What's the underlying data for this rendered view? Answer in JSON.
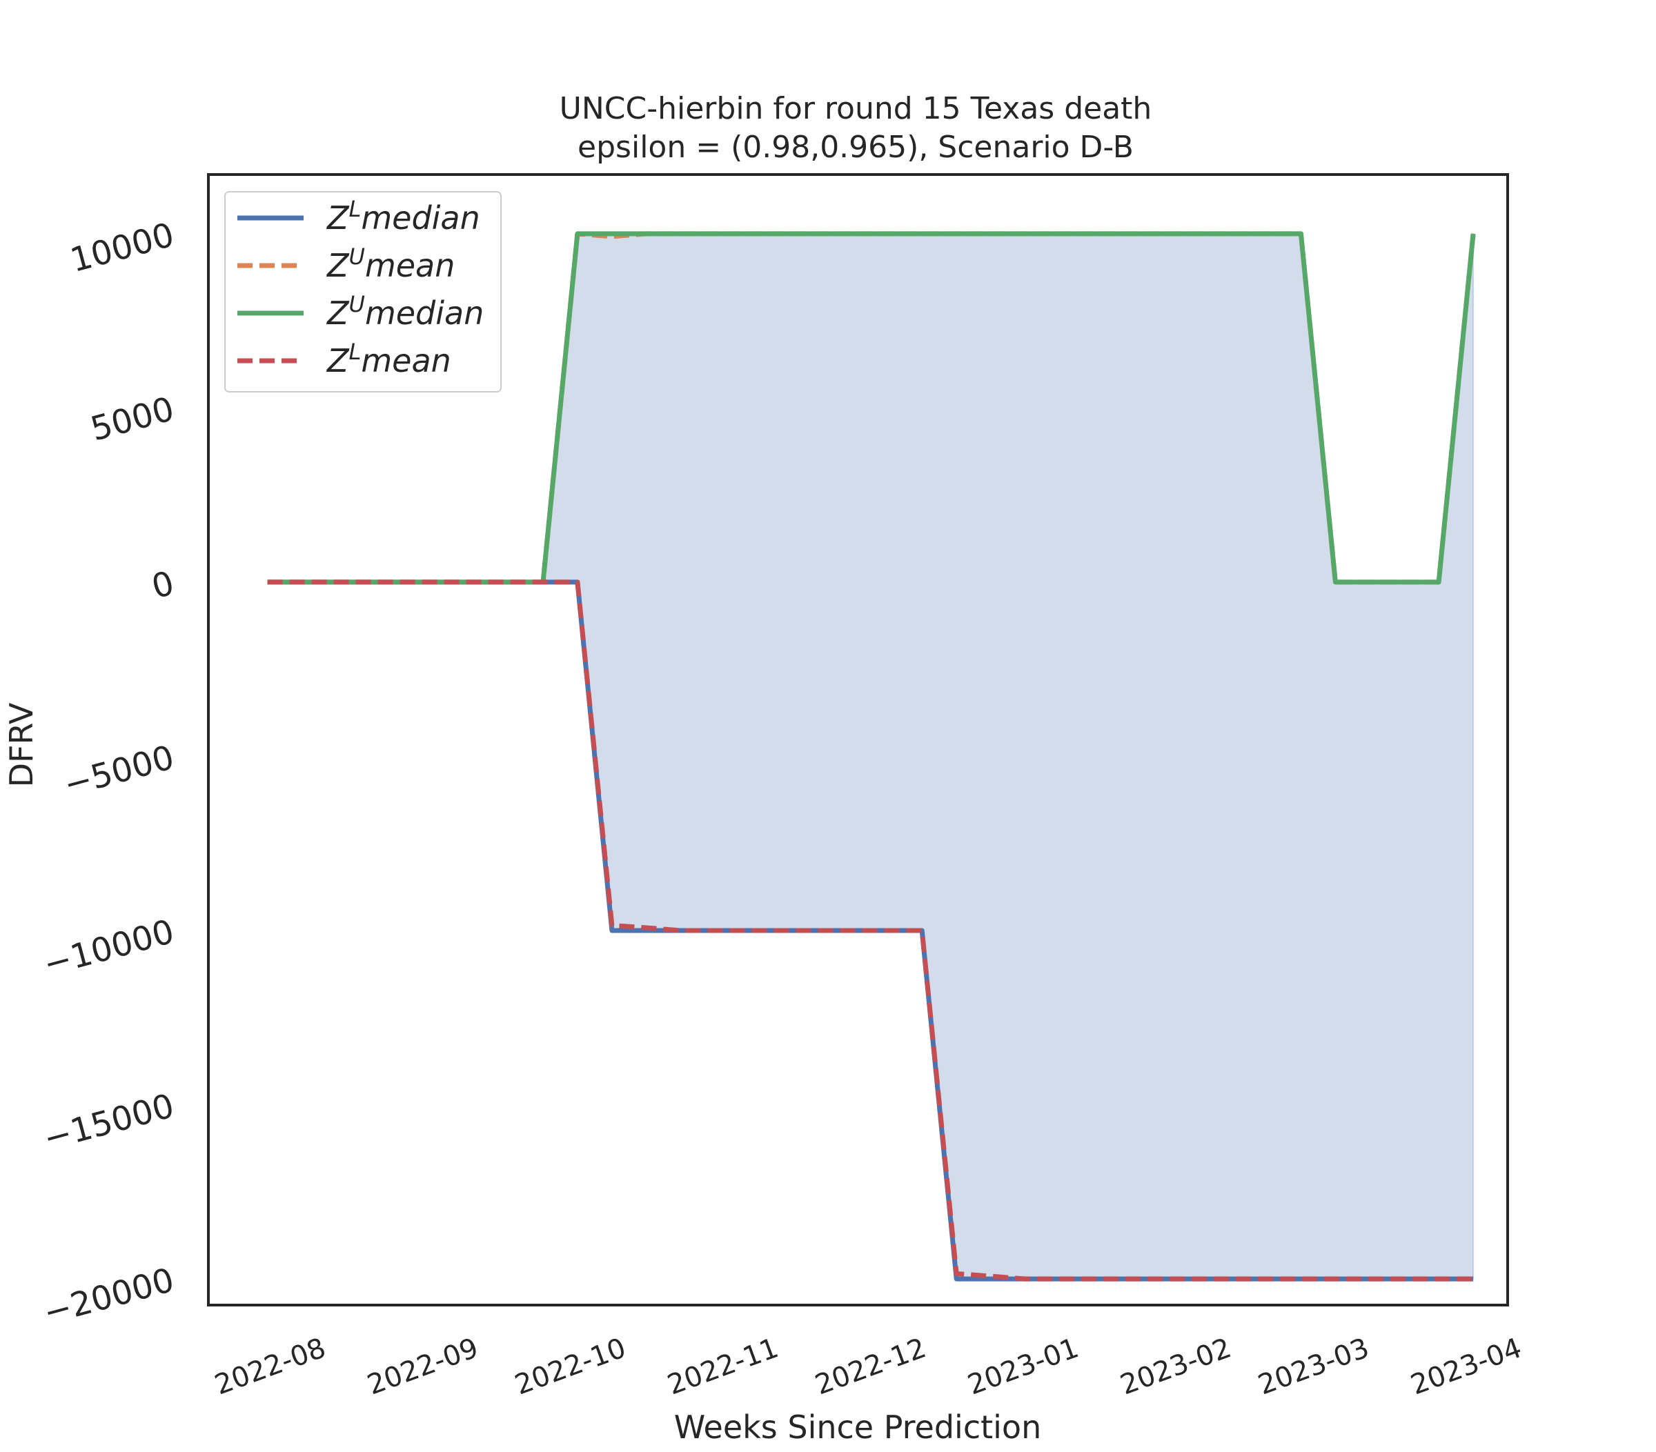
{
  "chart_data": {
    "type": "line",
    "title_line1": "UNCC-hierbin for round 15 Texas  death",
    "title_line2": "epsilon = (0.98,0.965), Scenario D-B",
    "xlabel": "Weeks Since Prediction",
    "ylabel": "DFRV",
    "ylim": [
      -20750,
      11700
    ],
    "yticks": [
      10000,
      5000,
      0,
      -5000,
      -10000,
      -15000,
      -20000
    ],
    "ytick_labels": [
      "10000",
      "5000",
      "0",
      "−5000",
      "−10000",
      "−15000",
      "−20000"
    ],
    "xlim": [
      "2022-07-12",
      "2023-04-02"
    ],
    "xticks": [
      "2022-08-01",
      "2022-09-01",
      "2022-10-01",
      "2022-11-01",
      "2022-12-01",
      "2023-01-01",
      "2023-02-01",
      "2023-03-01",
      "2023-04-01"
    ],
    "xtick_labels": [
      "2022-08",
      "2022-09",
      "2022-10",
      "2022-11",
      "2022-12",
      "2023-01",
      "2023-02",
      "2023-03",
      "2023-04"
    ],
    "grid": false,
    "legend_position": "top-left",
    "fill_color": "#4c72b0",
    "x": [
      "2022-07-24",
      "2022-07-31",
      "2022-08-07",
      "2022-08-14",
      "2022-08-21",
      "2022-08-28",
      "2022-09-04",
      "2022-09-11",
      "2022-09-18",
      "2022-09-25",
      "2022-10-02",
      "2022-10-09",
      "2022-10-16",
      "2022-10-23",
      "2022-10-30",
      "2022-11-06",
      "2022-11-13",
      "2022-11-20",
      "2022-11-27",
      "2022-12-04",
      "2022-12-11",
      "2022-12-18",
      "2022-12-25",
      "2023-01-01",
      "2023-01-08",
      "2023-01-15",
      "2023-01-22",
      "2023-01-29",
      "2023-02-05",
      "2023-02-12",
      "2023-02-19",
      "2023-02-26",
      "2023-03-05",
      "2023-03-12",
      "2023-03-19",
      "2023-03-26"
    ],
    "series": [
      {
        "name": "Z^L median",
        "label_base": "Z",
        "label_sup": "L",
        "label_rest": "median",
        "color": "#4c72b0",
        "dashed": false,
        "values": [
          0,
          0,
          0,
          0,
          0,
          0,
          0,
          0,
          0,
          0,
          -10000,
          -10000,
          -10000,
          -10000,
          -10000,
          -10000,
          -10000,
          -10000,
          -10000,
          -10000,
          -20000,
          -20000,
          -20000,
          -20000,
          -20000,
          -20000,
          -20000,
          -20000,
          -20000,
          -20000,
          -20000,
          -20000,
          -20000,
          -20000,
          -20000,
          -20000
        ]
      },
      {
        "name": "Z^U mean",
        "label_base": "Z",
        "label_sup": "U",
        "label_rest": "mean",
        "color": "#dd8452",
        "dashed": true,
        "values": [
          0,
          0,
          0,
          0,
          0,
          0,
          0,
          0,
          0,
          10000,
          9920,
          10000,
          10000,
          10000,
          10000,
          10000,
          10000,
          10000,
          10000,
          10000,
          10000,
          10000,
          10000,
          10000,
          10000,
          10000,
          10000,
          10000,
          10000,
          10000,
          10000,
          0,
          0,
          0,
          0,
          10000
        ]
      },
      {
        "name": "Z^U median",
        "label_base": "Z",
        "label_sup": "U",
        "label_rest": "median",
        "color": "#55a868",
        "dashed": false,
        "values": [
          0,
          0,
          0,
          0,
          0,
          0,
          0,
          0,
          0,
          10000,
          10000,
          10000,
          10000,
          10000,
          10000,
          10000,
          10000,
          10000,
          10000,
          10000,
          10000,
          10000,
          10000,
          10000,
          10000,
          10000,
          10000,
          10000,
          10000,
          10000,
          10000,
          0,
          0,
          0,
          0,
          10000
        ]
      },
      {
        "name": "Z^L mean",
        "label_base": "Z",
        "label_sup": "L",
        "label_rest": "mean",
        "color": "#c44e52",
        "dashed": true,
        "values": [
          0,
          0,
          0,
          0,
          0,
          0,
          0,
          0,
          0,
          0,
          -9850,
          -9920,
          -10000,
          -10000,
          -10000,
          -10000,
          -10000,
          -10000,
          -10000,
          -10000,
          -19850,
          -19920,
          -20000,
          -20000,
          -20000,
          -20000,
          -20000,
          -20000,
          -20000,
          -20000,
          -20000,
          -20000,
          -20000,
          -20000,
          -20000,
          -20000
        ]
      }
    ]
  }
}
